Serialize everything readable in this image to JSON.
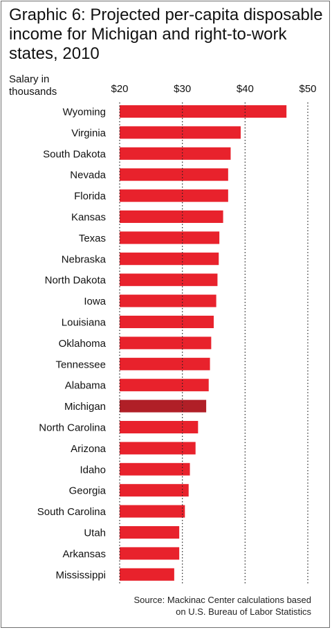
{
  "chart_data": {
    "type": "bar",
    "orientation": "horizontal",
    "title": "Graphic 6: Projected per-capita disposable income for Michigan and right-to-work states, 2010",
    "ylabel": "Salary in\nthousands",
    "xlabel": "",
    "tick_labels": [
      "$20",
      "$30",
      "$40",
      "$50"
    ],
    "ticks": [
      20,
      30,
      40,
      50
    ],
    "xlim": [
      20,
      50
    ],
    "grid": "dotted vertical lines at ticks",
    "colors": {
      "bar": "#e8222c",
      "highlight": "#b01f27"
    },
    "highlight": "Michigan",
    "categories": [
      "Wyoming",
      "Virginia",
      "South Dakota",
      "Nevada",
      "Florida",
      "Kansas",
      "Texas",
      "Nebraska",
      "North Dakota",
      "Iowa",
      "Louisiana",
      "Oklahoma",
      "Tennessee",
      "Alabama",
      "Michigan",
      "North Carolina",
      "Arizona",
      "Idaho",
      "Georgia",
      "South Carolina",
      "Utah",
      "Arkansas",
      "Mississippi"
    ],
    "values": [
      46.6,
      39.3,
      37.7,
      37.3,
      37.3,
      36.5,
      35.9,
      35.8,
      35.6,
      35.4,
      35.0,
      34.6,
      34.4,
      34.2,
      33.8,
      32.5,
      32.1,
      31.2,
      31.0,
      30.4,
      29.5,
      29.5,
      28.7
    ]
  },
  "source": "Source: Mackinac Center calculations based\non U.S. Bureau of Labor Statistics"
}
